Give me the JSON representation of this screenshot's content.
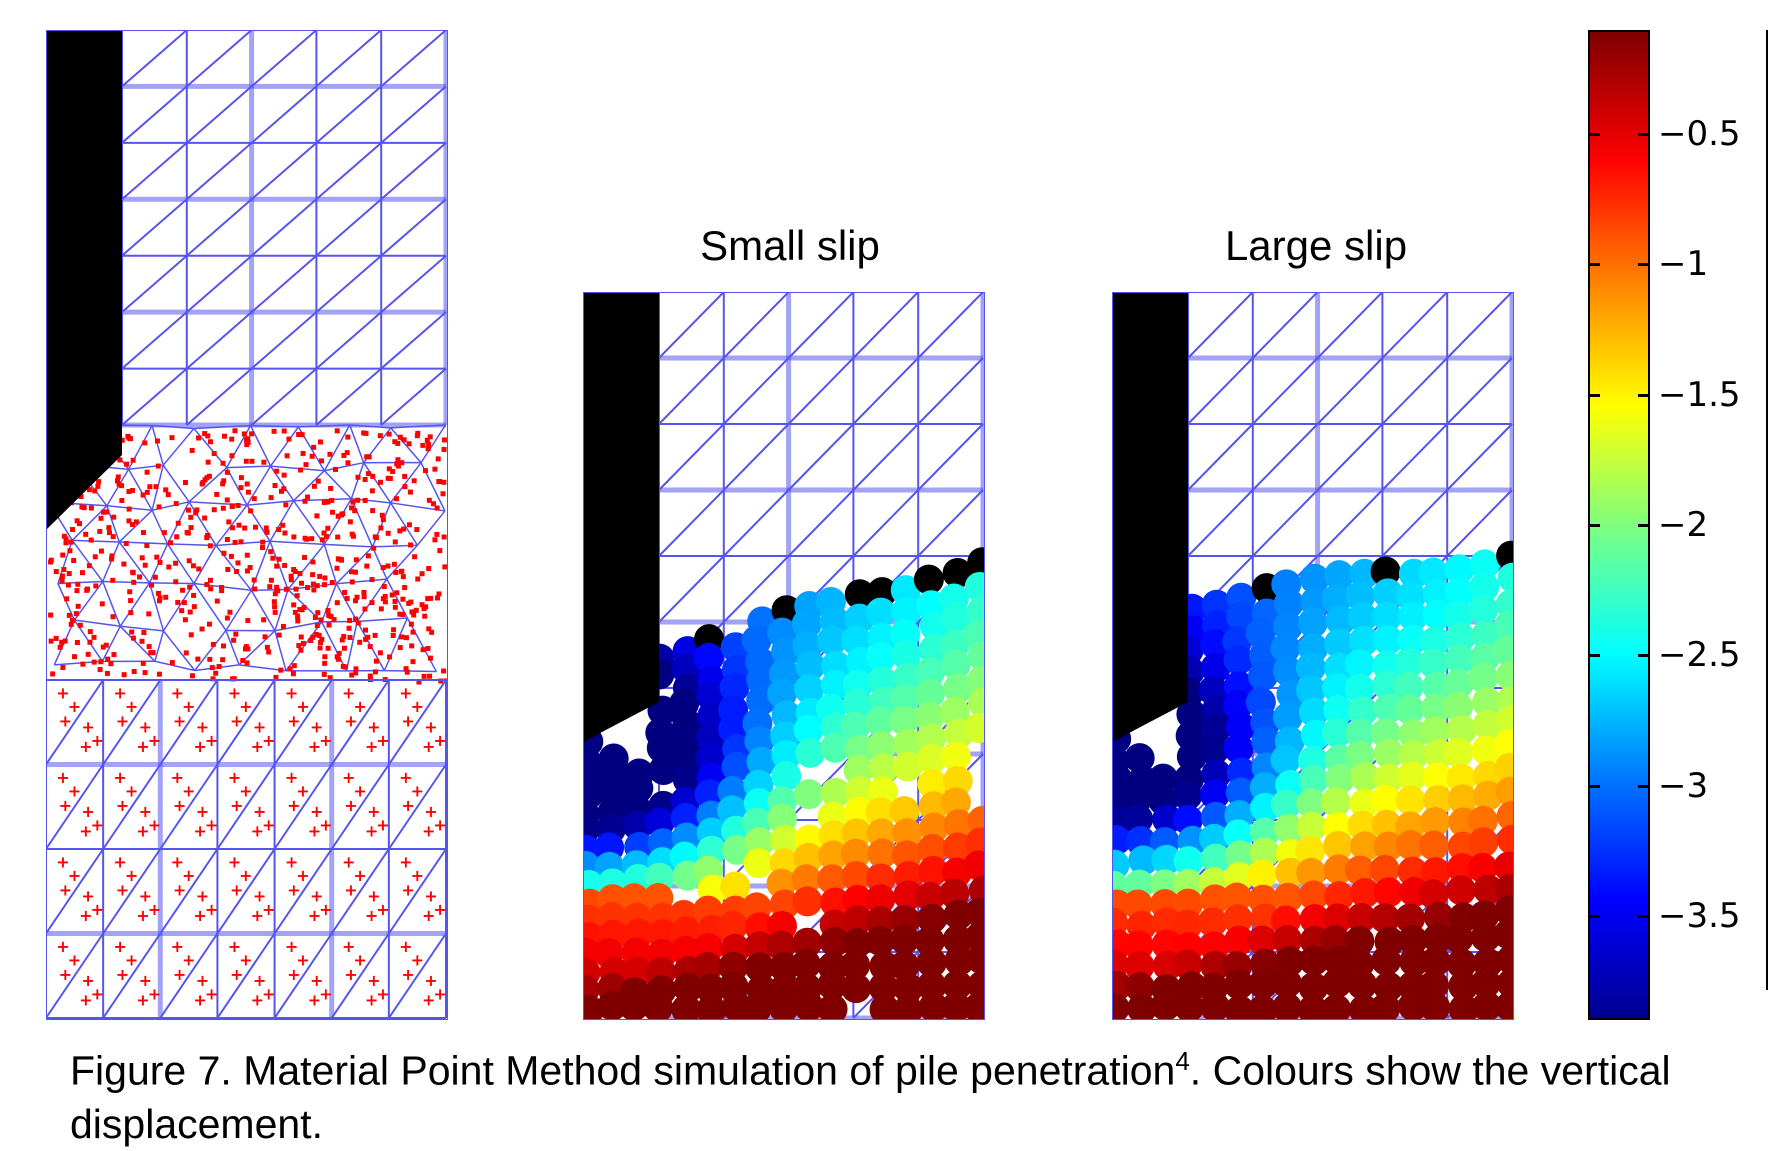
{
  "panels": [
    {
      "id": "initial",
      "title": ""
    },
    {
      "id": "small-slip",
      "title": "Small slip"
    },
    {
      "id": "large-slip",
      "title": "Large slip"
    }
  ],
  "colorbar": {
    "ticks": [
      "−0.5",
      "−1",
      "−1.5",
      "−2",
      "−2.5",
      "−3",
      "−3.5"
    ],
    "tick_values": [
      -0.5,
      -1,
      -1.5,
      -2,
      -2.5,
      -3,
      -3.5
    ],
    "range": [
      -3.9,
      -0.1
    ],
    "colormap": "jet"
  },
  "caption": {
    "text_before": "Figure 7. Material Point Method simulation of pile penetration",
    "superscript": "4",
    "text_after": ". Colours show the vertical displacement."
  },
  "colors": {
    "mesh": "#5555ee",
    "pile": "#000000",
    "particles_initial": "#ff0000"
  }
}
